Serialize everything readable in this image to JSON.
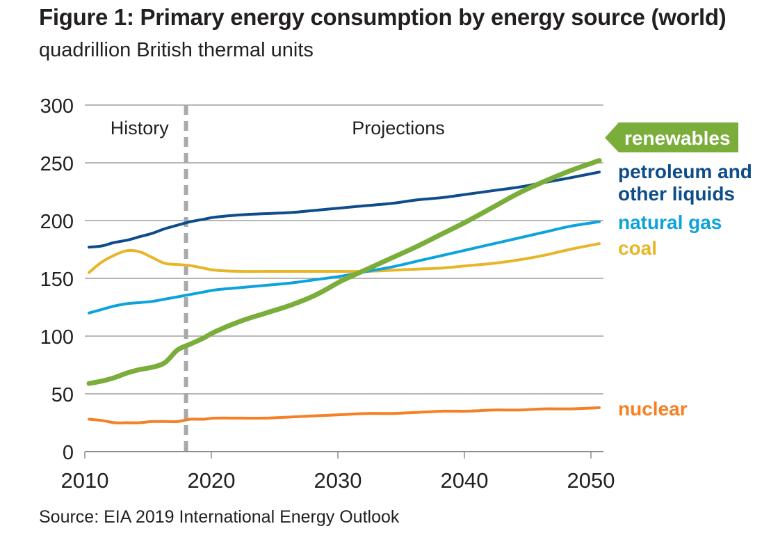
{
  "header": {
    "title": "Figure 1: Primary energy consumption by energy source (world)",
    "subtitle": "quadrillion British thermal units"
  },
  "footer": {
    "source": "Source: EIA 2019 International Energy Outlook"
  },
  "chart_data": {
    "type": "line",
    "title": "Figure 1: Primary energy consumption by energy source (world)",
    "subtitle": "quadrillion British thermal units",
    "xlabel": "",
    "ylabel": "quadrillion British thermal units",
    "xlim": [
      2010,
      2051
    ],
    "ylim": [
      0,
      300
    ],
    "x_ticks": [
      2010,
      2020,
      2030,
      2040,
      2050
    ],
    "y_ticks": [
      0,
      50,
      100,
      150,
      200,
      250,
      300
    ],
    "grid": "horizontal",
    "history_end_year": 2018,
    "annotations": [
      "History",
      "Projections"
    ],
    "legend": "direct labels at right",
    "x": [
      2010,
      2011,
      2012,
      2013,
      2014,
      2015,
      2016,
      2017,
      2018,
      2019,
      2020,
      2022,
      2024,
      2026,
      2028,
      2030,
      2032,
      2034,
      2036,
      2038,
      2040,
      2042,
      2044,
      2046,
      2048,
      2050
    ],
    "series": [
      {
        "name": "renewables",
        "label": "renewables",
        "color": "#7aad3a",
        "values": [
          59,
          61,
          64,
          68,
          71,
          73,
          77,
          88,
          93,
          98,
          104,
          113,
          120,
          127,
          136,
          148,
          158,
          168,
          178,
          189,
          200,
          212,
          224,
          234,
          243,
          252
        ]
      },
      {
        "name": "petroleum and other liquids",
        "label": "petroleum and other liquids",
        "color": "#0e4c8a",
        "values": [
          177,
          178,
          181,
          183,
          186,
          189,
          193,
          196,
          199,
          201,
          203,
          205,
          206,
          207,
          209,
          211,
          213,
          215,
          218,
          220,
          223,
          226,
          229,
          233,
          237,
          242
        ]
      },
      {
        "name": "natural gas",
        "label": "natural gas",
        "color": "#0ca3dc",
        "values": [
          120,
          123,
          126,
          128,
          129,
          130,
          132,
          134,
          136,
          138,
          140,
          142,
          144,
          146,
          149,
          152,
          156,
          160,
          165,
          170,
          175,
          180,
          185,
          190,
          195,
          199
        ]
      },
      {
        "name": "coal",
        "label": "coal",
        "color": "#e8b528",
        "values": [
          155,
          164,
          170,
          174,
          173,
          168,
          163,
          162,
          161,
          159,
          157,
          156,
          156,
          156,
          156,
          156,
          156,
          157,
          158,
          159,
          161,
          163,
          166,
          170,
          175,
          180
        ]
      },
      {
        "name": "nuclear",
        "label": "nuclear",
        "color": "#f58025",
        "values": [
          28,
          27,
          25,
          25,
          25,
          26,
          26,
          26,
          28,
          28,
          29,
          29,
          29,
          30,
          31,
          32,
          33,
          33,
          34,
          35,
          35,
          36,
          36,
          37,
          37,
          38
        ]
      }
    ],
    "labels": {
      "history": "History",
      "projections": "Projections"
    }
  },
  "colors": {
    "text": "#231f20",
    "grid": "#8c8c8c",
    "divider": "#a7a9ac"
  }
}
